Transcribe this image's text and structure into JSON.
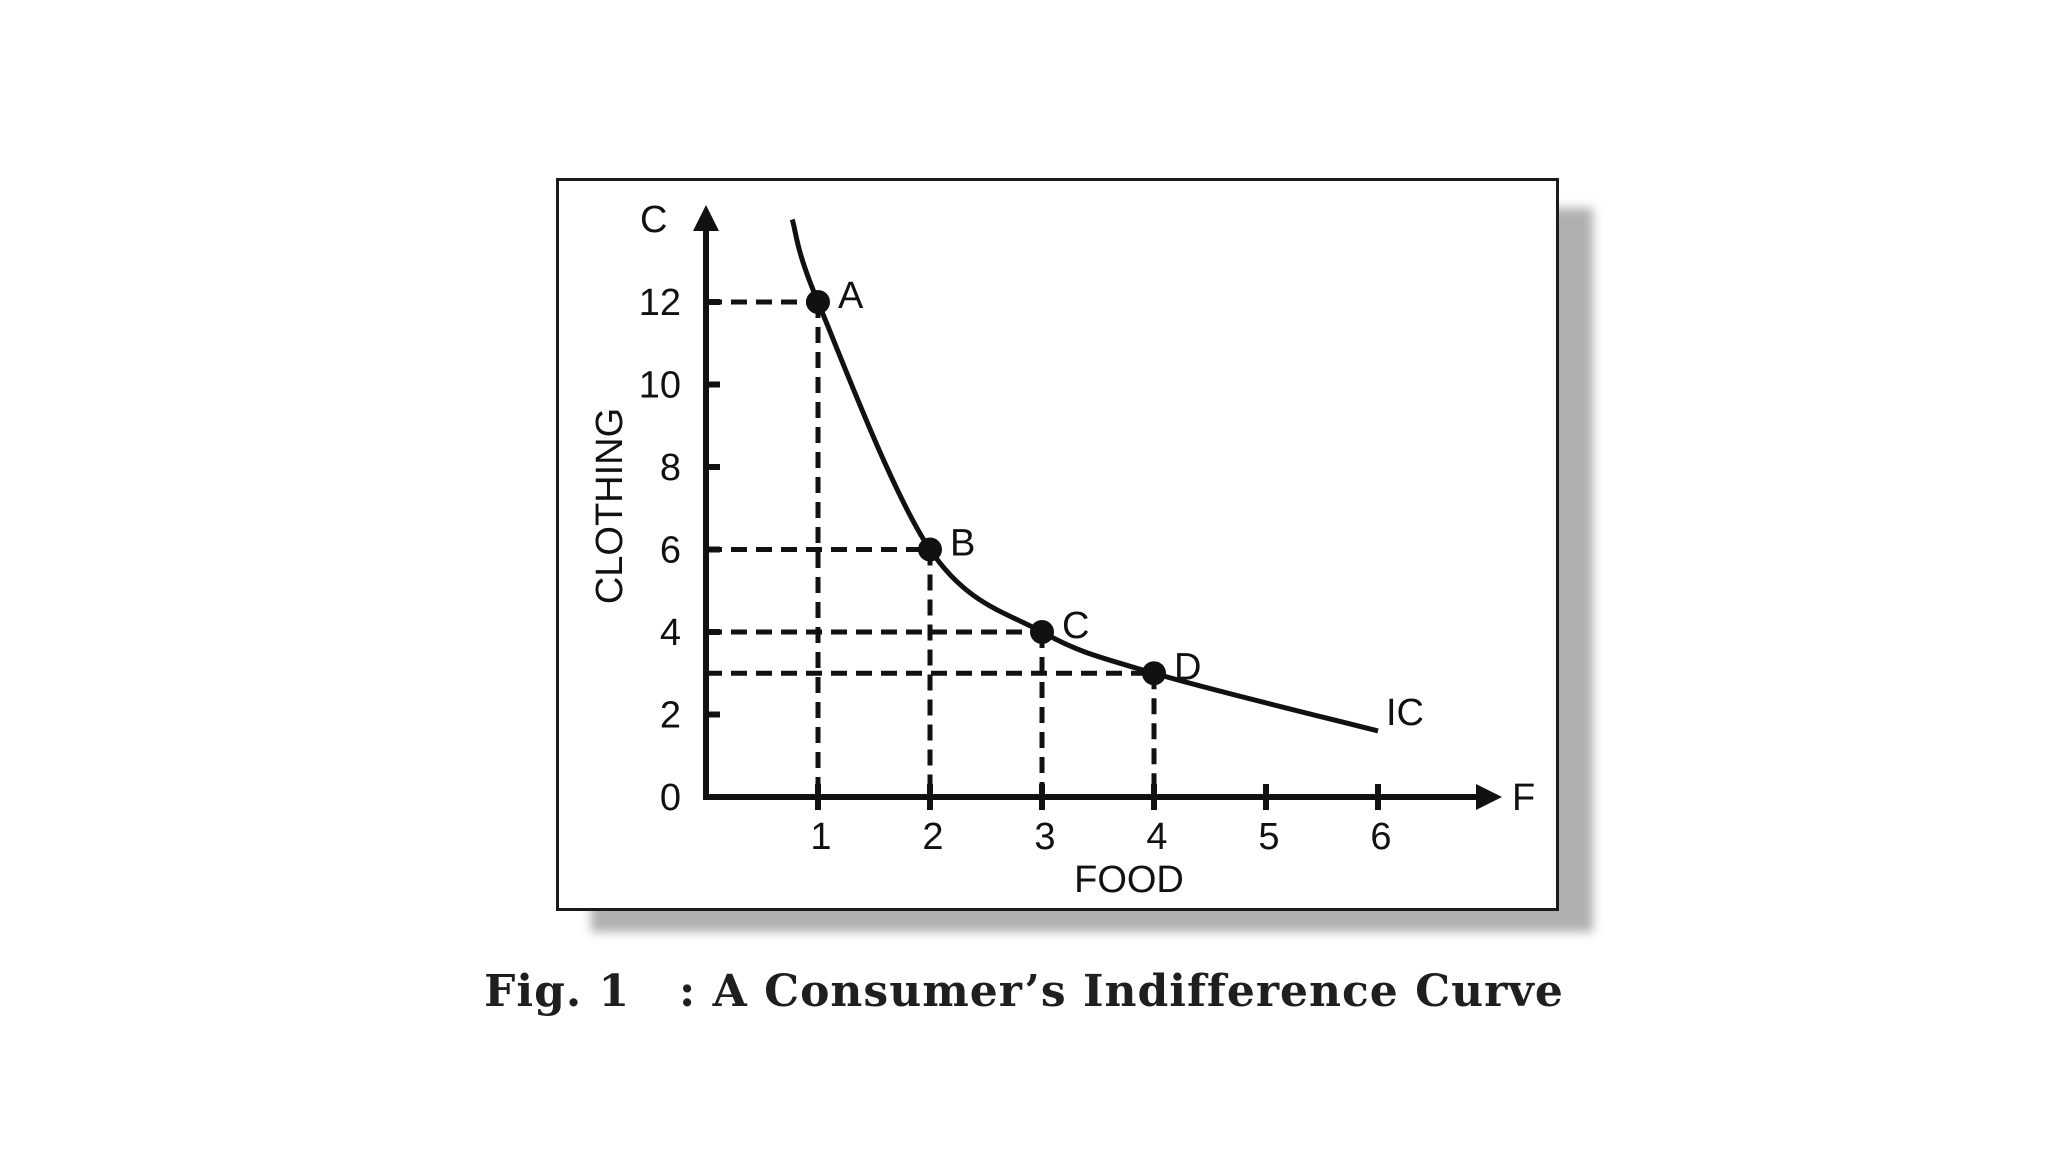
{
  "caption": "Fig. 1   : A Consumer’s Indifference Curve",
  "chart_data": {
    "type": "line",
    "title": "",
    "xlabel": "FOOD",
    "ylabel": "CLOTHING",
    "x_axis_end_label": "F",
    "y_axis_end_label": "C",
    "xlim": [
      0,
      6.9
    ],
    "ylim": [
      0,
      14.1
    ],
    "x_ticks": [
      1,
      2,
      3,
      4,
      5,
      6
    ],
    "y_ticks": [
      0,
      2,
      4,
      6,
      8,
      10,
      12
    ],
    "grid": false,
    "points": [
      {
        "label": "A",
        "x": 1,
        "y": 12
      },
      {
        "label": "B",
        "x": 2,
        "y": 6
      },
      {
        "label": "C",
        "x": 3,
        "y": 4
      },
      {
        "label": "D",
        "x": 4,
        "y": 3
      }
    ],
    "series": [
      {
        "name": "IC",
        "x": [
          0.77,
          1,
          2,
          3,
          4,
          6
        ],
        "y": [
          14,
          12,
          6,
          4,
          3,
          1.6
        ]
      }
    ],
    "colors": {
      "ink": "#111111",
      "shadow": "#b0b0b0"
    }
  }
}
